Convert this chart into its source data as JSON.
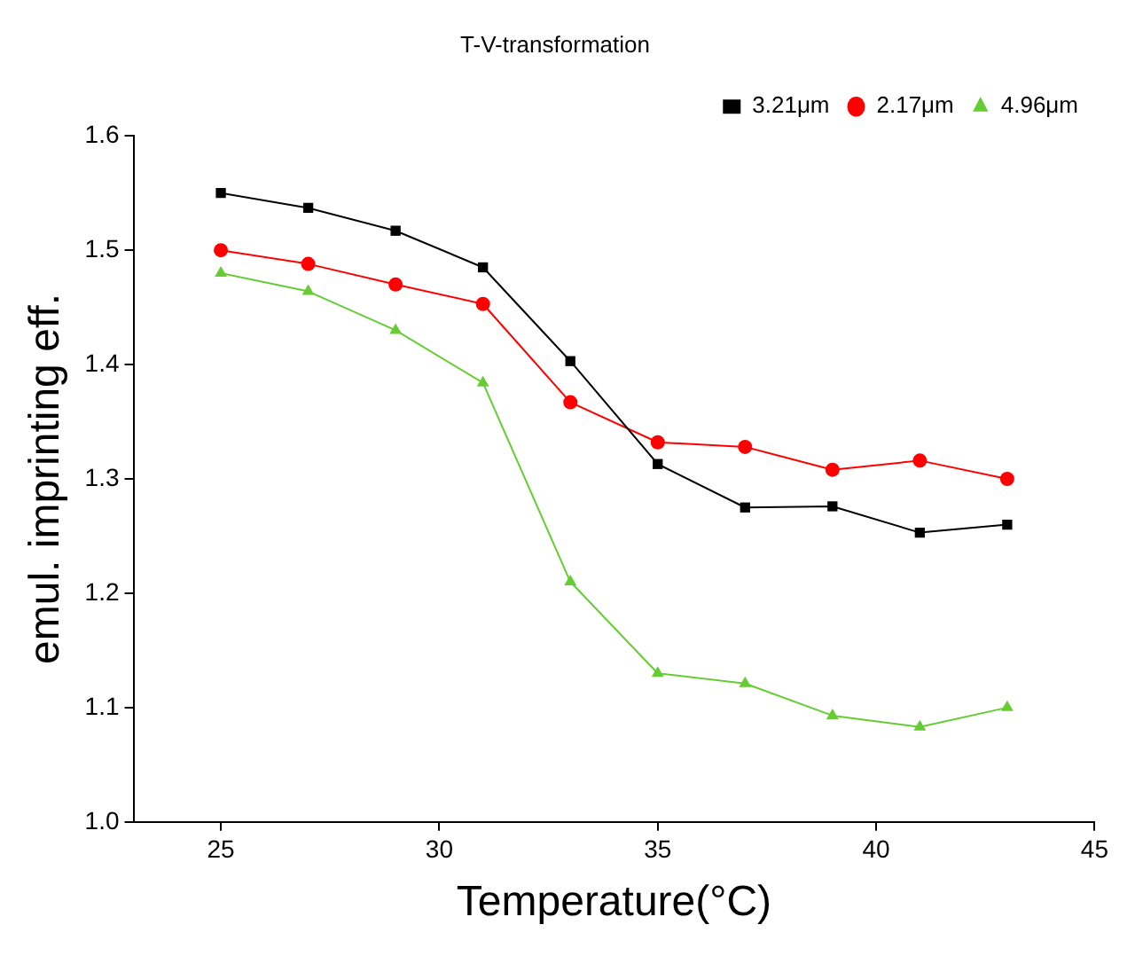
{
  "chart_data": {
    "type": "line",
    "title": "T-V-transformation",
    "xlabel": "Temperature(°C)",
    "ylabel": "emul. imprinting eff.",
    "x": [
      25,
      27,
      29,
      31,
      33,
      35,
      37,
      39,
      41,
      43
    ],
    "series": [
      {
        "name": "3.21μm",
        "color": "#000000",
        "marker": "square",
        "values": [
          1.55,
          1.537,
          1.517,
          1.485,
          1.403,
          1.313,
          1.275,
          1.276,
          1.253,
          1.26
        ]
      },
      {
        "name": "2.17μm",
        "color": "#ff0000",
        "marker": "circle",
        "values": [
          1.5,
          1.488,
          1.47,
          1.453,
          1.367,
          1.332,
          1.328,
          1.308,
          1.316,
          1.3
        ]
      },
      {
        "name": "4.96μm",
        "color": "#66cc33",
        "marker": "triangle",
        "values": [
          1.48,
          1.464,
          1.43,
          1.384,
          1.21,
          1.13,
          1.121,
          1.093,
          1.083,
          1.1
        ]
      }
    ],
    "xlim": [
      23,
      45
    ],
    "xticks": [
      25,
      30,
      35,
      40,
      45
    ],
    "ylim": [
      1.0,
      1.6
    ],
    "yticks": [
      {
        "value": 1.0,
        "label": "1.0"
      },
      {
        "value": 1.1,
        "label": "1.1"
      },
      {
        "value": 1.2,
        "label": "1.2"
      },
      {
        "value": 1.3,
        "label": "1.3"
      },
      {
        "value": 1.4,
        "label": "1.4"
      },
      {
        "value": 1.5,
        "label": "1.5"
      },
      {
        "value": 1.6,
        "label": "1.6"
      }
    ],
    "grid": false,
    "legend": "top right",
    "line_style": "solid"
  }
}
